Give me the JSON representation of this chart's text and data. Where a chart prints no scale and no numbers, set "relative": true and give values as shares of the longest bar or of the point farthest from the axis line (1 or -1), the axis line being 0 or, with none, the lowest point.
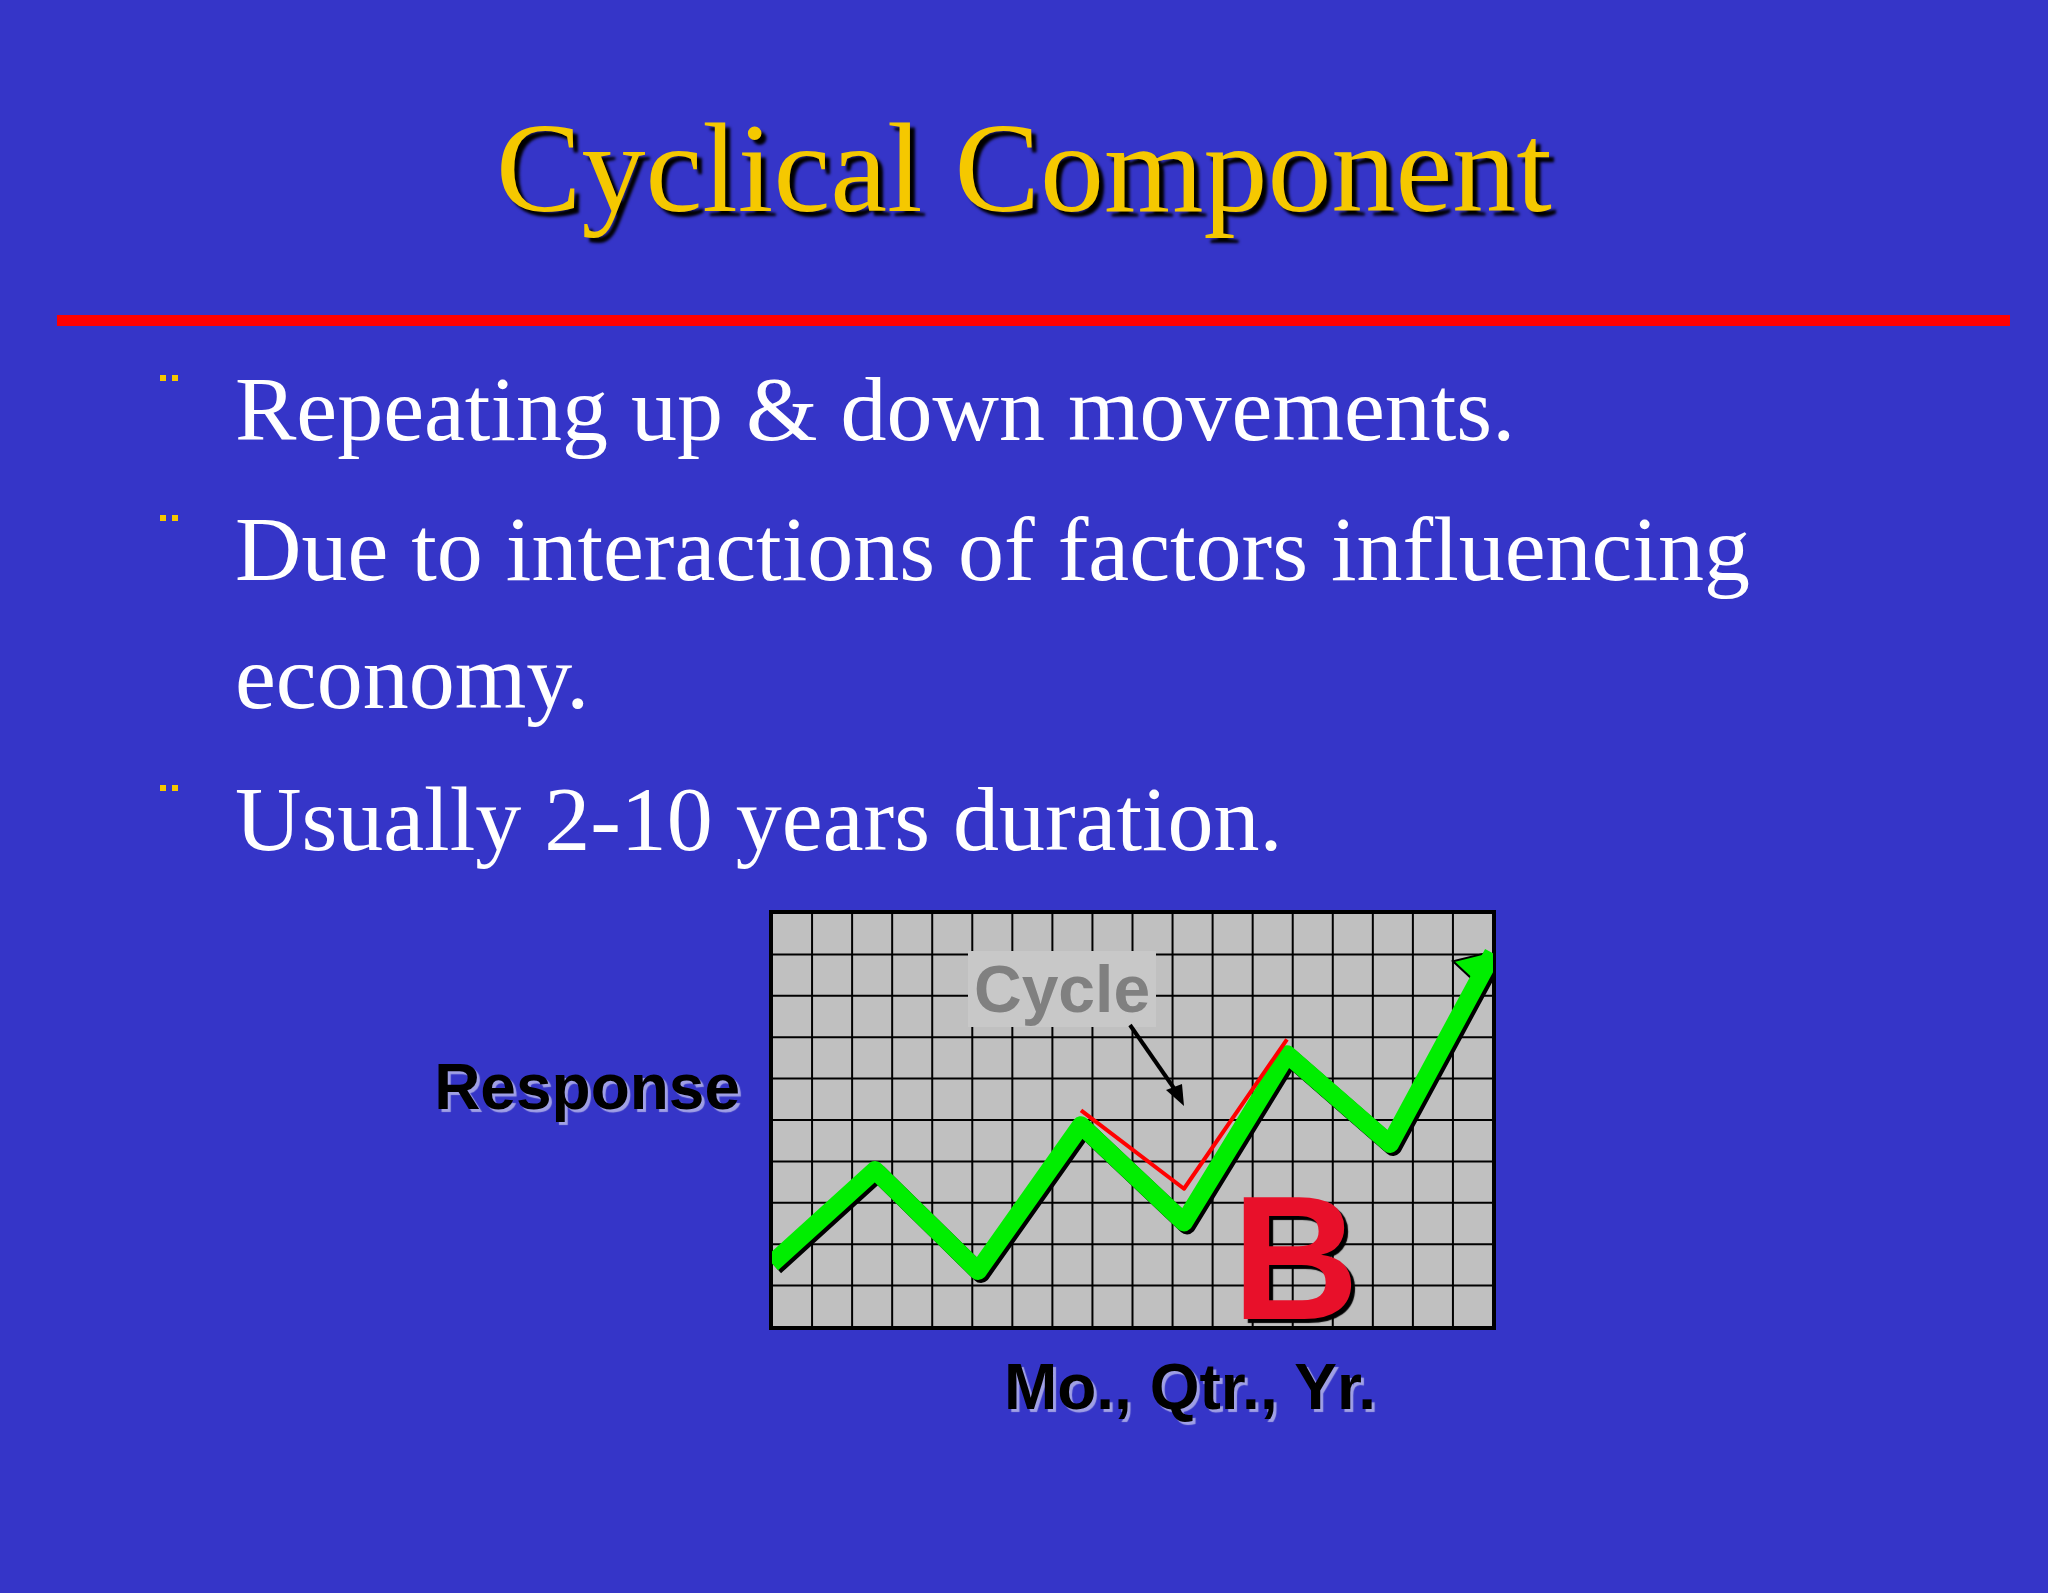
{
  "chart_data": {
    "type": "line",
    "title": "Cyclical Component",
    "xlabel": "Mo., Qtr., Yr.",
    "ylabel": "Response",
    "relative": true,
    "grid": true,
    "marker": "none",
    "line_style": "solid",
    "categories": [
      null,
      null,
      null,
      null,
      null,
      null,
      null,
      null
    ],
    "series": [
      {
        "color": "#00ee00",
        "values": [
          0.17,
          0.42,
          0.15,
          0.54,
          0.28,
          0.73,
          0.49,
          1
        ]
      },
      {
        "color": "#ff0000",
        "values": [
          null,
          null,
          null,
          0.58,
          0.37,
          0.77,
          null,
          null
        ]
      }
    ],
    "annotations": [
      "Repeating up & down movements.",
      "Due to interactions of factors influencing economy.",
      "Usually 2-10 years duration.",
      "Cycle",
      "B"
    ]
  }
}
